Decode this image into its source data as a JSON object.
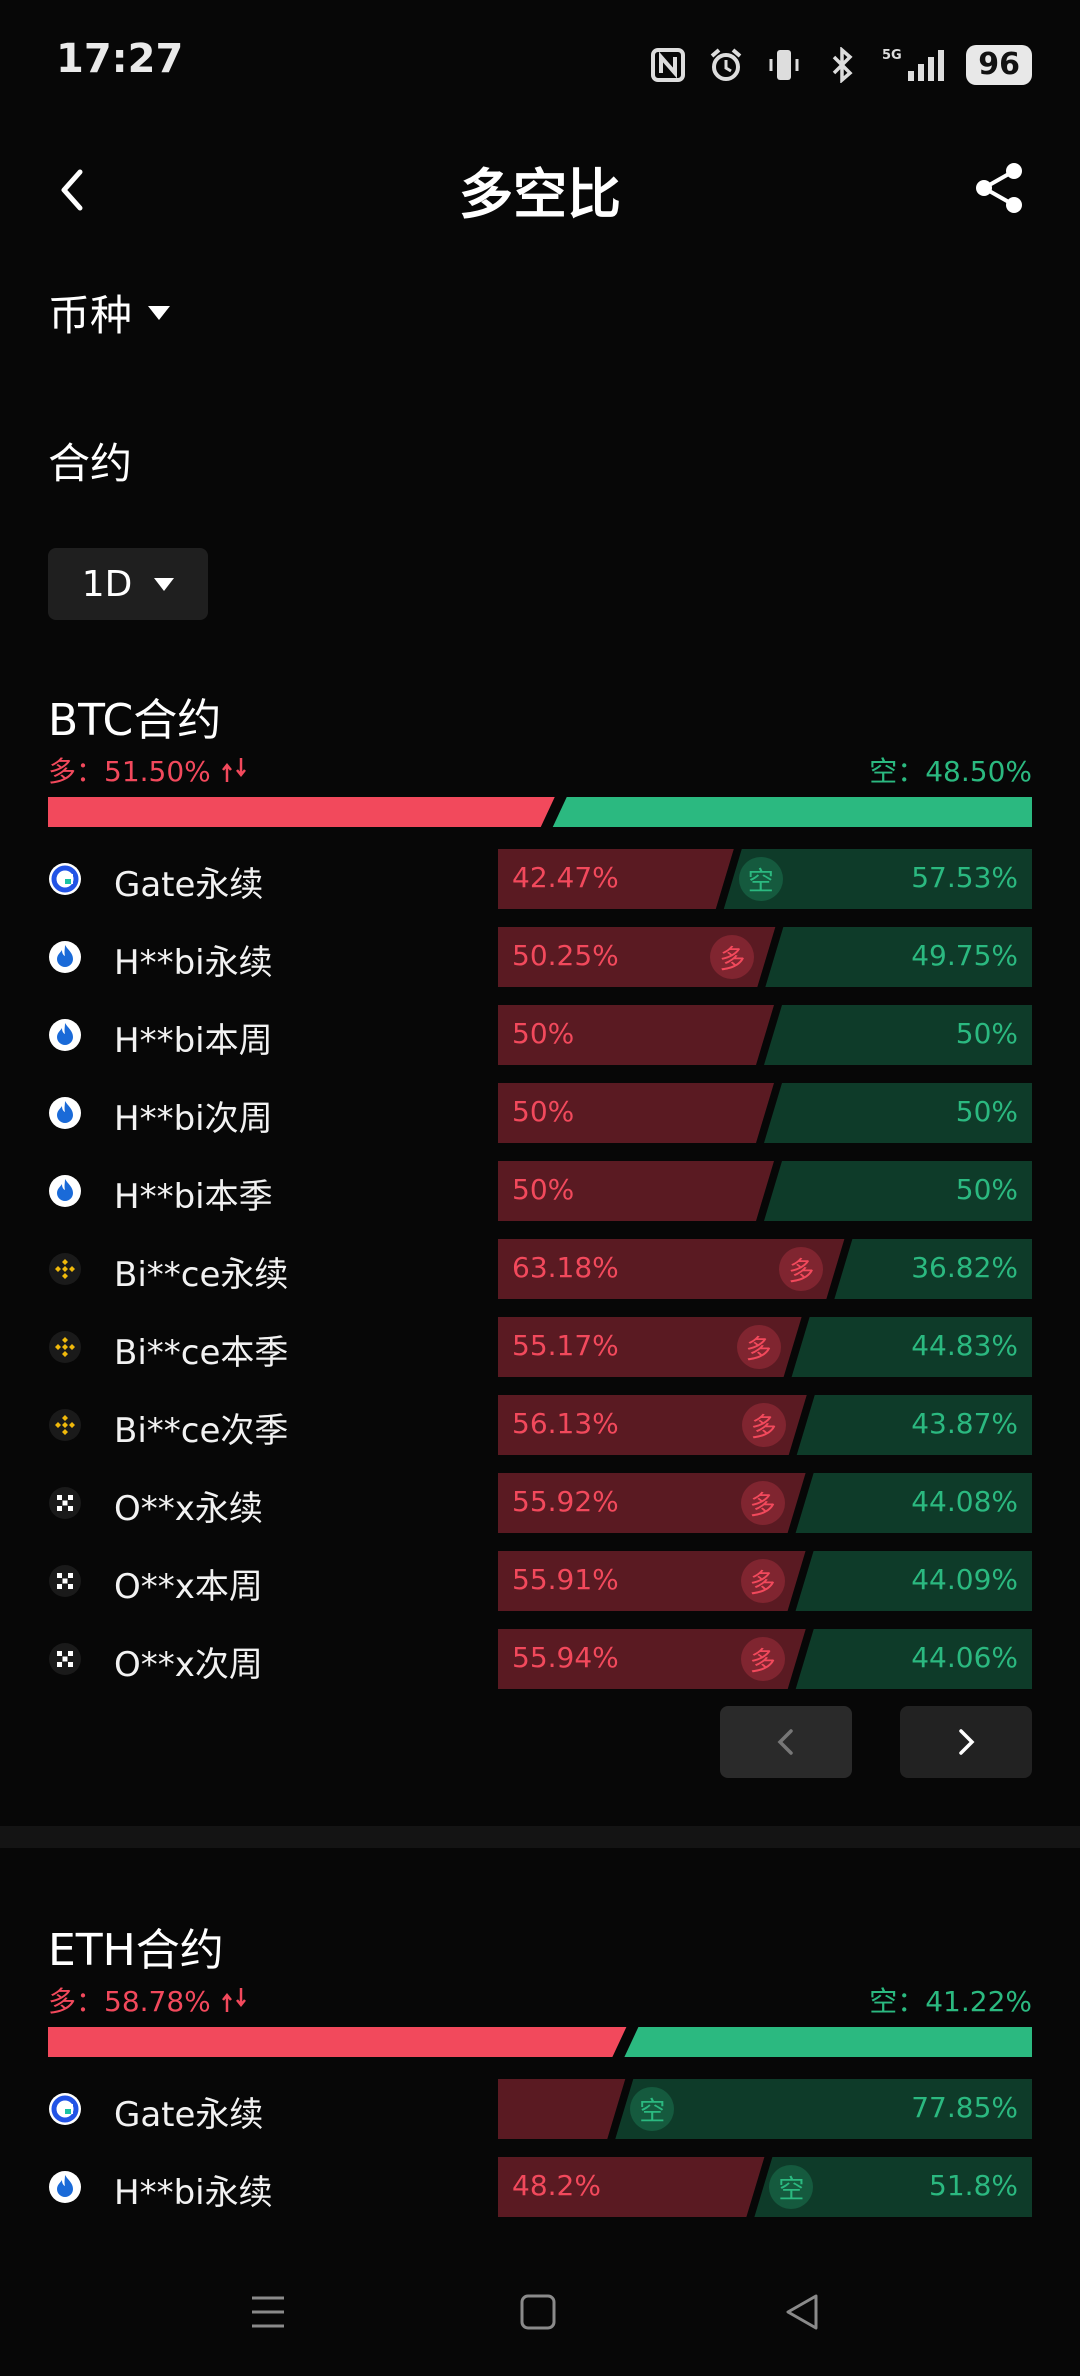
{
  "status": {
    "time": "17:27",
    "network": "5G",
    "battery": "96"
  },
  "header": {
    "title": "多空比"
  },
  "filters": {
    "coin_label": "币种",
    "section_label": "合约",
    "period": "1D"
  },
  "btc": {
    "title": "BTC合约",
    "long_label": "多：51.50%",
    "short_label": "空：48.50%",
    "long_ratio": 51.5,
    "rows": [
      {
        "name": "Gate永续",
        "exchange": "gate",
        "long": "42.47%",
        "short": "57.53%",
        "long_val": 42.47,
        "badge": "空"
      },
      {
        "name": "H**bi永续",
        "exchange": "huobi",
        "long": "50.25%",
        "short": "49.75%",
        "long_val": 50.25,
        "badge": "多"
      },
      {
        "name": "H**bi本周",
        "exchange": "huobi",
        "long": "50%",
        "short": "50%",
        "long_val": 50,
        "badge": ""
      },
      {
        "name": "H**bi次周",
        "exchange": "huobi",
        "long": "50%",
        "short": "50%",
        "long_val": 50,
        "badge": ""
      },
      {
        "name": "H**bi本季",
        "exchange": "huobi",
        "long": "50%",
        "short": "50%",
        "long_val": 50,
        "badge": ""
      },
      {
        "name": "Bi**ce永续",
        "exchange": "binance",
        "long": "63.18%",
        "short": "36.82%",
        "long_val": 63.18,
        "badge": "多"
      },
      {
        "name": "Bi**ce本季",
        "exchange": "binance",
        "long": "55.17%",
        "short": "44.83%",
        "long_val": 55.17,
        "badge": "多"
      },
      {
        "name": "Bi**ce次季",
        "exchange": "binance",
        "long": "56.13%",
        "short": "43.87%",
        "long_val": 56.13,
        "badge": "多"
      },
      {
        "name": "O**x永续",
        "exchange": "okx",
        "long": "55.92%",
        "short": "44.08%",
        "long_val": 55.92,
        "badge": "多"
      },
      {
        "name": "O**x本周",
        "exchange": "okx",
        "long": "55.91%",
        "short": "44.09%",
        "long_val": 55.91,
        "badge": "多"
      },
      {
        "name": "O**x次周",
        "exchange": "okx",
        "long": "55.94%",
        "short": "44.06%",
        "long_val": 55.94,
        "badge": "多"
      }
    ]
  },
  "eth": {
    "title": "ETH合约",
    "long_label": "多：58.78%",
    "short_label": "空：41.22%",
    "long_ratio": 58.78,
    "rows": [
      {
        "name": "Gate永续",
        "exchange": "gate",
        "long": "",
        "short": "77.85%",
        "long_val": 22.15,
        "badge": "空"
      },
      {
        "name": "H**bi永续",
        "exchange": "huobi",
        "long": "48.2%",
        "short": "51.8%",
        "long_val": 48.2,
        "badge": "空"
      }
    ]
  },
  "colors": {
    "long": "#f2495c",
    "short": "#2bb980",
    "long_dark": "#5a1a22",
    "short_dark": "#0e3b29"
  }
}
